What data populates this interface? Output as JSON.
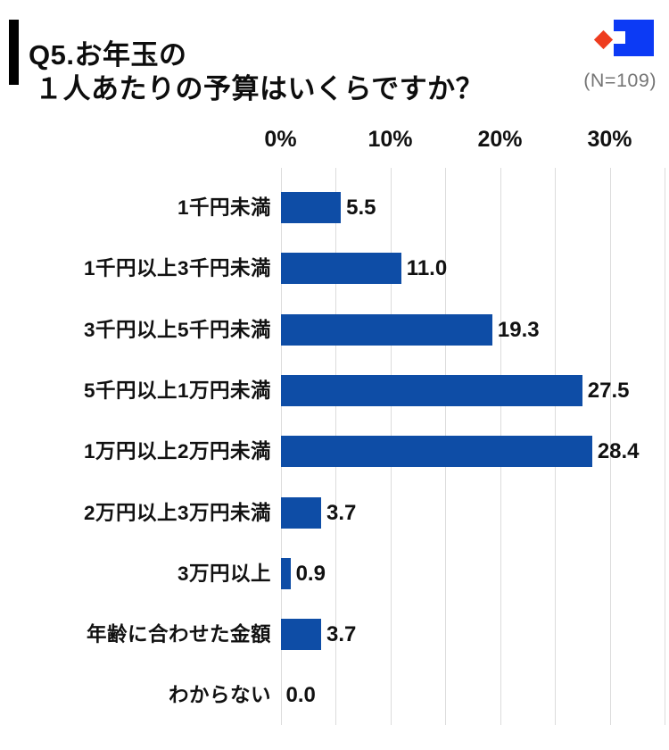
{
  "header": {
    "title_line1": "Q5.お年玉の",
    "title_line2": "１人あたりの予算はいくらですか？",
    "sample_size": "(N=109)",
    "logo_colors": {
      "blue": "#0c3af5",
      "red": "#ee3c1f"
    }
  },
  "chart_data": {
    "type": "bar",
    "orientation": "horizontal",
    "title": "Q5.お年玉の １人あたりの予算はいくらですか？",
    "sample_size_note": "(N=109)",
    "categories": [
      "1千円未満",
      "1千円以上3千円未満",
      "3千円以上5千円未満",
      "5千円以上1万円未満",
      "1万円以上2万円未満",
      "2万円以上3万円未満",
      "3万円以上",
      "年齢に合わせた金額",
      "わからない"
    ],
    "values": [
      5.5,
      11.0,
      19.3,
      27.5,
      28.4,
      3.7,
      0.9,
      3.7,
      0.0
    ],
    "value_labels": [
      "5.5",
      "11.0",
      "19.3",
      "27.5",
      "28.4",
      "3.7",
      "0.9",
      "3.7",
      "0.0"
    ],
    "unit": "%",
    "x_ticks": [
      "0%",
      "10%",
      "20%",
      "30%"
    ],
    "x_tick_values": [
      0,
      10,
      20,
      30
    ],
    "xlim": [
      0,
      35
    ],
    "gridline_step_percent": 5,
    "grid": true,
    "legend": false,
    "bar_color": "#0e4da6",
    "gridline_color": "#dcdcdc"
  }
}
